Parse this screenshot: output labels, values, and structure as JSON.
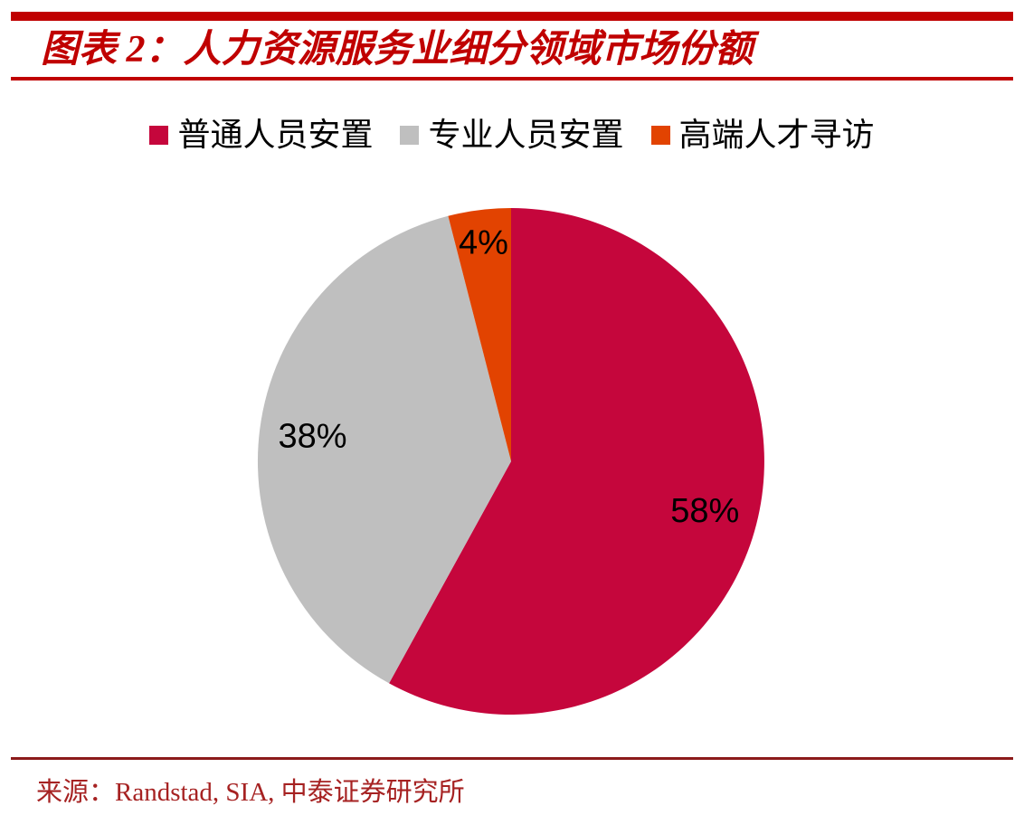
{
  "header": {
    "title": "图表 2：人力资源服务业细分领域市场份额"
  },
  "legend": {
    "items": [
      {
        "label": "普通人员安置",
        "color": "#C5063C"
      },
      {
        "label": "专业人员安置",
        "color": "#BFBFBF"
      },
      {
        "label": "高端人才寻访",
        "color": "#E24301"
      }
    ]
  },
  "chart_data": {
    "type": "pie",
    "title": "图表 2：人力资源服务业细分领域市场份额",
    "categories": [
      "普通人员安置",
      "专业人员安置",
      "高端人才寻访"
    ],
    "values": [
      58,
      38,
      4
    ],
    "data_labels": [
      "58%",
      "38%",
      "4%"
    ],
    "colors": [
      "#C5063C",
      "#BFBFBF",
      "#E24301"
    ],
    "start_angle_deg": 0,
    "direction": "clockwise",
    "legend_position": "top",
    "data_label_color": "#000000"
  },
  "footer": {
    "source": "来源：Randstad, SIA, 中泰证券研究所"
  },
  "colors": {
    "title_red": "#C00000",
    "rule_red": "#C00000",
    "footer_rule_red": "#8B1A1A",
    "source_red": "#A62222",
    "background": "#FFFFFF"
  }
}
